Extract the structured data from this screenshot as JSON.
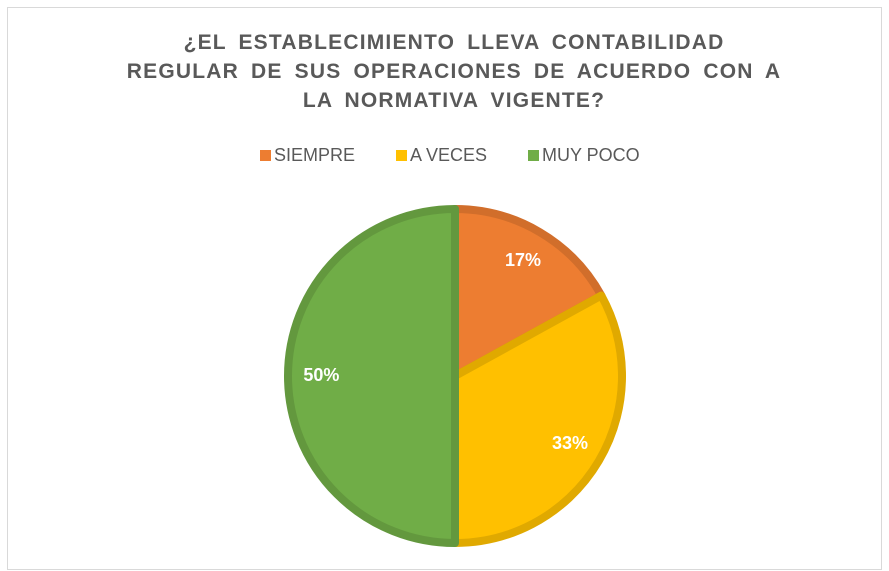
{
  "chart_data": {
    "type": "pie",
    "title": "¿EL ESTABLECIMIENTO LLEVA CONTABILIDAD REGULAR DE SUS OPERACIONES DE ACUERDO CON A LA NORMATIVA VIGENTE?",
    "categories": [
      "SIEMPRE",
      "A VECES",
      "MUY POCO"
    ],
    "values": [
      17,
      33,
      50
    ],
    "value_labels": [
      "17%",
      "33%",
      "50%"
    ],
    "colors": [
      "#ED7D31",
      "#FFC000",
      "#70AD47"
    ],
    "legend": "top"
  }
}
